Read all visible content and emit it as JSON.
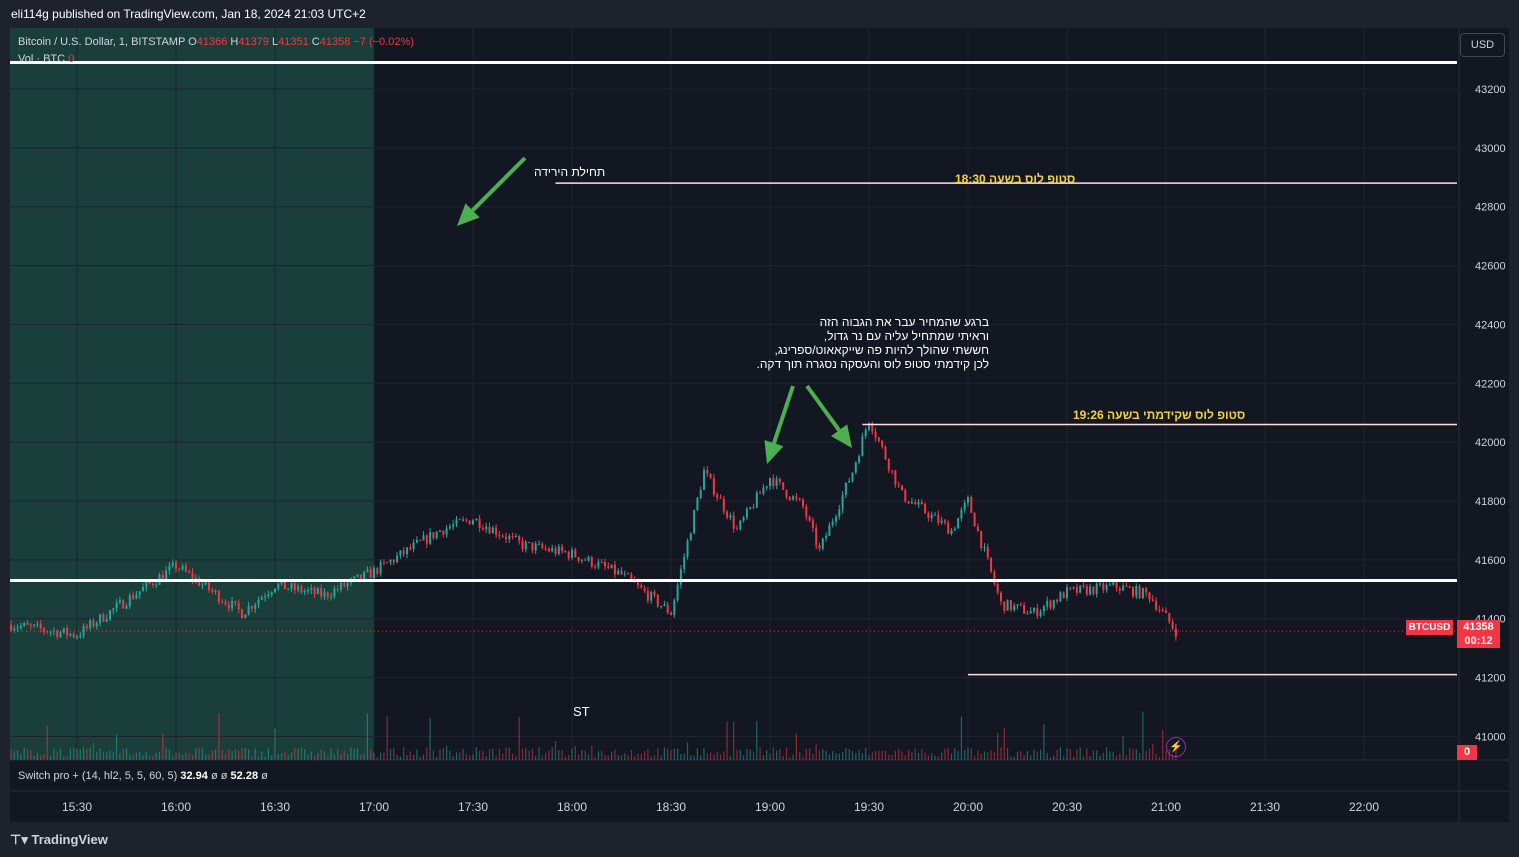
{
  "header": {
    "published": "eli114g published on TradingView.com, Jan 18, 2024 21:03 UTC+2"
  },
  "legend": {
    "symbol": "Bitcoin / U.S. Dollar, 1, BITSTAMP",
    "o_label": "O",
    "o_value": "41366",
    "h_label": "H",
    "h_value": "41379",
    "l_label": "L",
    "l_value": "41351",
    "c_label": "C",
    "c_value": "41358",
    "change": "−7 (−0.02%)",
    "vol_label": "Vol · BTC",
    "vol_value": "0"
  },
  "indicator": {
    "label": "Switch pro + (14, hl2, 5, 5, 60, 5)",
    "v1": "32.94",
    "s1": "ø",
    "s2": "ø",
    "v2": "52.28",
    "s3": "ø"
  },
  "currency_button": "USD",
  "price_tag": {
    "symbol": "BTCUSD",
    "price": "41358",
    "countdown": "00:12"
  },
  "volume_tag": "0",
  "brand": "TradingView",
  "annotations": {
    "drop_start": "תחילת הירידה",
    "stop_1830": "סטופ לוס בשעה 18:30",
    "stop_1926": "סטופ לוס שקידמתי בשעה 19:26",
    "st": "ST",
    "explain_lines": [
      "ברגע שהמחיר עבר את הגבוה הזה",
      "וראיתי שמתחיל עליה עם נר גדול,",
      "חששתי שהולך להיות פה שייקאאוט/ספרינג,",
      "לכן קידמתי סטופ לוס והעסקה נסגרה תוך דקה."
    ]
  },
  "colors": {
    "up": "#26a69a",
    "down": "#f23645",
    "background": "#131722",
    "highlight": "#1a3f3a",
    "arrow": "#4caf50",
    "annotation_yellow": "#f5d33b"
  },
  "chart_data": {
    "type": "line",
    "symbol": "BTCUSD",
    "x": [
      "15:10",
      "15:30",
      "16:00",
      "16:20",
      "16:30",
      "16:45",
      "17:00",
      "17:20",
      "17:30",
      "17:45",
      "18:00",
      "18:15",
      "18:30",
      "18:40",
      "18:50",
      "19:00",
      "19:10",
      "19:15",
      "19:25",
      "19:30",
      "19:40",
      "19:55",
      "20:00",
      "20:10",
      "20:20",
      "20:30",
      "20:45",
      "20:55",
      "21:03"
    ],
    "close": [
      41380,
      41345,
      41580,
      41420,
      41515,
      41480,
      41560,
      41700,
      41740,
      41650,
      41620,
      41550,
      41420,
      41900,
      41700,
      41880,
      41780,
      41630,
      41900,
      42080,
      41820,
      41700,
      41800,
      41450,
      41420,
      41490,
      41510,
      41480,
      41358
    ],
    "ylim": [
      40920,
      43380
    ],
    "yticks": [
      41000,
      41200,
      41400,
      41600,
      41800,
      42000,
      42200,
      42400,
      42600,
      42800,
      43000,
      43200
    ],
    "xticks": [
      "15:30",
      "16:00",
      "16:30",
      "17:00",
      "17:30",
      "18:00",
      "18:30",
      "19:00",
      "19:30",
      "20:00",
      "20:30",
      "21:00",
      "21:30",
      "22:00"
    ],
    "horizontal_levels": [
      43290,
      42880,
      42060,
      41530,
      41210
    ],
    "last_price": 41358,
    "highlight_range": [
      "15:05",
      "17:00"
    ]
  }
}
